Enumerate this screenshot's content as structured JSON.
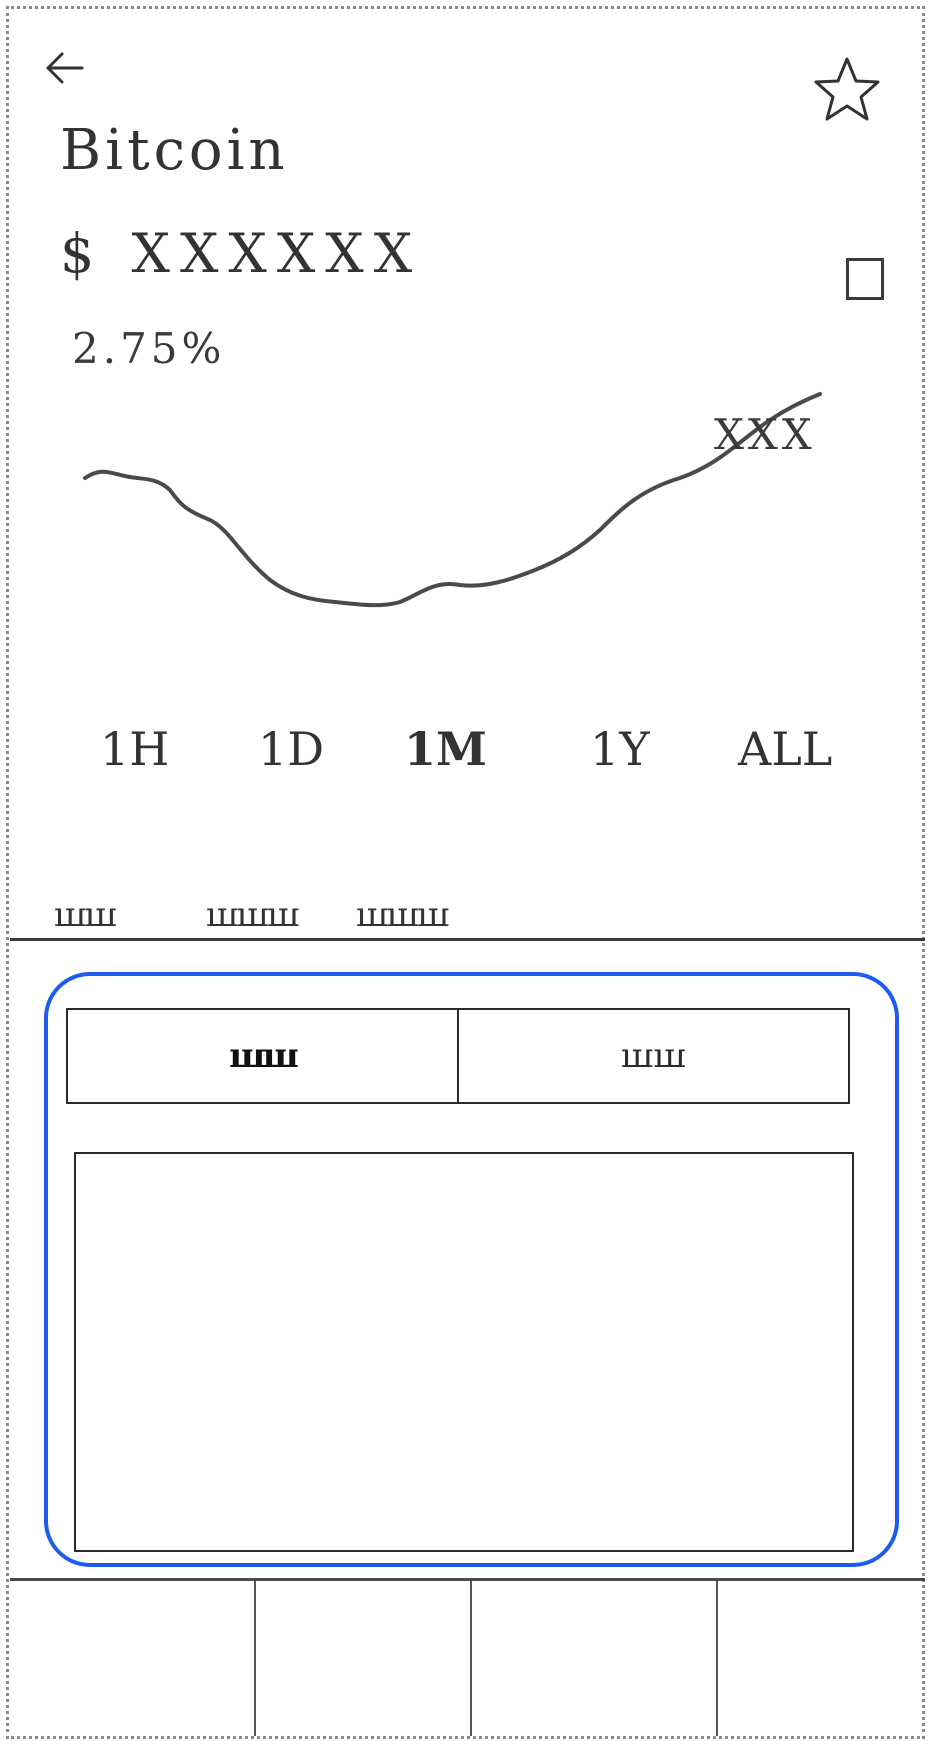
{
  "header": {
    "coin_name": "Bitcoin",
    "price": "$ XXXXXX",
    "change": "2.75%",
    "chart_label": "XXX"
  },
  "time_ranges": [
    "1H",
    "1D",
    "1M",
    "1Y",
    "ALL"
  ],
  "tabs": [
    "ꟺꟺ",
    "ꟺꟺꟺ",
    "ꟺꟺꟺ"
  ],
  "segments": [
    "ꟺꟺ",
    "ꟺꟺ"
  ],
  "colors": {
    "accent": "#1e5cf0",
    "ink": "#2b2b2b",
    "frame": "#8a8a8a"
  },
  "icons": {
    "back": "arrow-left-icon",
    "favorite": "star-icon",
    "option": "square-icon"
  }
}
